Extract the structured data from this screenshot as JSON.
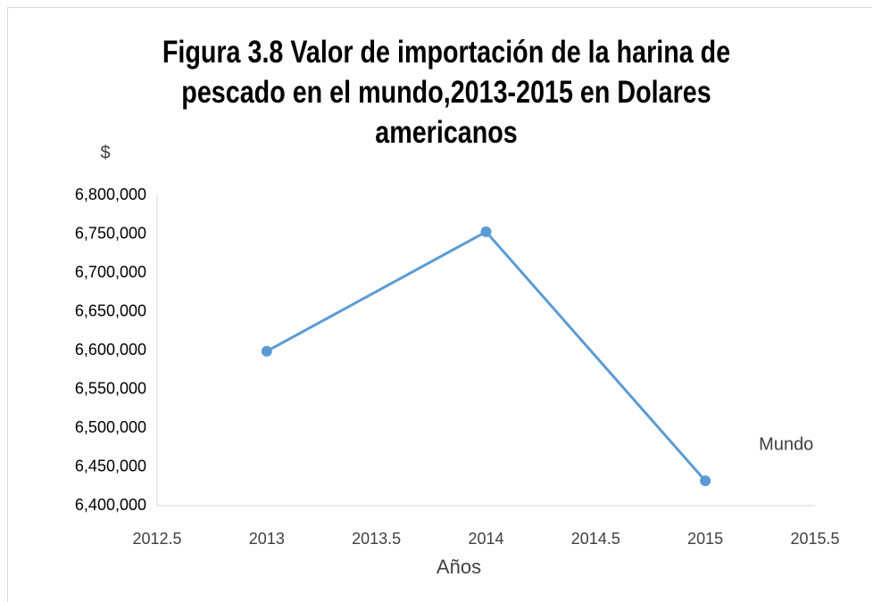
{
  "chart_data": {
    "type": "line",
    "title": "Figura 3.8 Valor de importación de la harina de pescado en el mundo,2013-2015 en Dolares americanos",
    "ylabel": "$",
    "xlabel": "Años",
    "x": [
      2013,
      2014,
      2015
    ],
    "series": [
      {
        "name": "Mundo",
        "color": "#5b9bd5",
        "values": [
          6599000,
          6753000,
          6432000
        ]
      }
    ],
    "xlim": [
      2012.5,
      2015.5
    ],
    "xticks": [
      2012.5,
      2013,
      2013.5,
      2014,
      2014.5,
      2015,
      2015.5
    ],
    "ylim": [
      6400000,
      6800000
    ],
    "yticks": [
      {
        "value": 6400000,
        "label": "6,400,000"
      },
      {
        "value": 6450000,
        "label": "6,450,000"
      },
      {
        "value": 6500000,
        "label": "6,500,000"
      },
      {
        "value": 6550000,
        "label": "6,550,000"
      },
      {
        "value": 6600000,
        "label": "6,600,000"
      },
      {
        "value": 6650000,
        "label": "6,650,000"
      },
      {
        "value": 6700000,
        "label": "6,700,000"
      },
      {
        "value": 6750000,
        "label": "6,750,000"
      },
      {
        "value": 6800000,
        "label": "6,800,000"
      }
    ],
    "grid": false
  }
}
